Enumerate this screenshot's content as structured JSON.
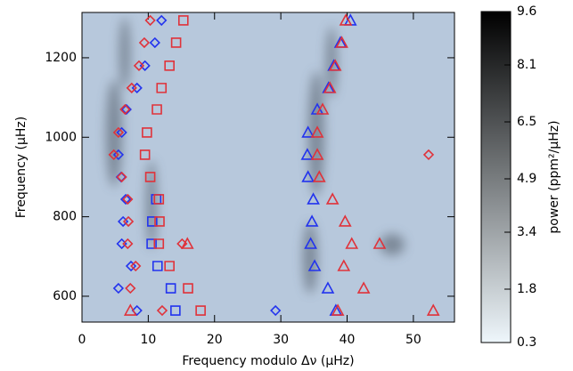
{
  "chart_data": {
    "type": "scatter",
    "xlabel": "Frequency modulo Δν (μHz)",
    "ylabel": "Frequency (μHz)",
    "xlim": [
      0,
      56.2
    ],
    "ylim": [
      535,
      1314
    ],
    "xticks": [
      0,
      10,
      20,
      30,
      40,
      50
    ],
    "yticks": [
      600,
      800,
      1000,
      1200
    ],
    "series": [
      {
        "marker": "diamond",
        "color": "#2233ee",
        "x": [
          12.0,
          11.0,
          9.5,
          8.3,
          6.7,
          6.0,
          5.5,
          5.9,
          6.6,
          6.2,
          6.0,
          7.4,
          5.5,
          8.3,
          29.2
        ],
        "y": [
          1294,
          1238,
          1180,
          1124,
          1070,
          1012,
          956,
          900,
          844,
          788,
          732,
          676,
          620,
          564,
          564
        ]
      },
      {
        "marker": "diamond",
        "color": "#e0323a",
        "x": [
          10.3,
          9.4,
          8.6,
          7.5,
          6.5,
          5.5,
          4.8,
          6.0,
          6.9,
          7.0,
          6.9,
          8.1,
          7.3,
          12.1,
          15.1,
          52.3
        ],
        "y": [
          1294,
          1238,
          1180,
          1124,
          1070,
          1012,
          956,
          900,
          844,
          788,
          732,
          676,
          620,
          564,
          732,
          956
        ]
      },
      {
        "marker": "square",
        "color": "#2233ee",
        "x": [
          11.2,
          10.6,
          10.5,
          11.4,
          13.4,
          14.1
        ],
        "y": [
          844,
          788,
          732,
          676,
          620,
          564
        ]
      },
      {
        "marker": "square",
        "color": "#e0323a",
        "x": [
          15.3,
          14.2,
          13.2,
          12.0,
          11.3,
          9.8,
          9.5,
          10.3,
          11.6,
          11.7,
          11.6,
          13.2,
          16.0,
          17.9
        ],
        "y": [
          1294,
          1238,
          1180,
          1124,
          1070,
          1012,
          956,
          900,
          844,
          788,
          732,
          676,
          620,
          564
        ]
      },
      {
        "marker": "triangle",
        "color": "#2233ee",
        "x": [
          40.5,
          39.0,
          38.0,
          37.2,
          35.5,
          34.1,
          34.0,
          34.1,
          34.9,
          34.7,
          34.5,
          35.1,
          37.1,
          38.3
        ],
        "y": [
          1294,
          1238,
          1180,
          1124,
          1070,
          1012,
          956,
          900,
          844,
          788,
          732,
          676,
          620,
          564
        ]
      },
      {
        "marker": "triangle",
        "color": "#e0323a",
        "x": [
          39.8,
          39.2,
          38.2,
          37.4,
          36.3,
          35.5,
          35.5,
          35.8,
          37.8,
          39.7,
          40.7,
          44.9,
          15.9,
          39.5,
          42.5,
          38.6,
          53.0,
          7.3
        ],
        "y": [
          1294,
          1238,
          1180,
          1124,
          1070,
          1012,
          956,
          900,
          844,
          788,
          732,
          732,
          732,
          676,
          620,
          564,
          564,
          564
        ]
      }
    ],
    "colorbar": {
      "label": "power (ppm²/μHz)",
      "lim": [
        0.3,
        9.6
      ],
      "ticks": [
        0.3,
        1.8,
        3.4,
        4.9,
        6.5,
        8.1,
        9.6
      ],
      "colors": [
        "#eef6fb",
        "#000000"
      ]
    }
  }
}
